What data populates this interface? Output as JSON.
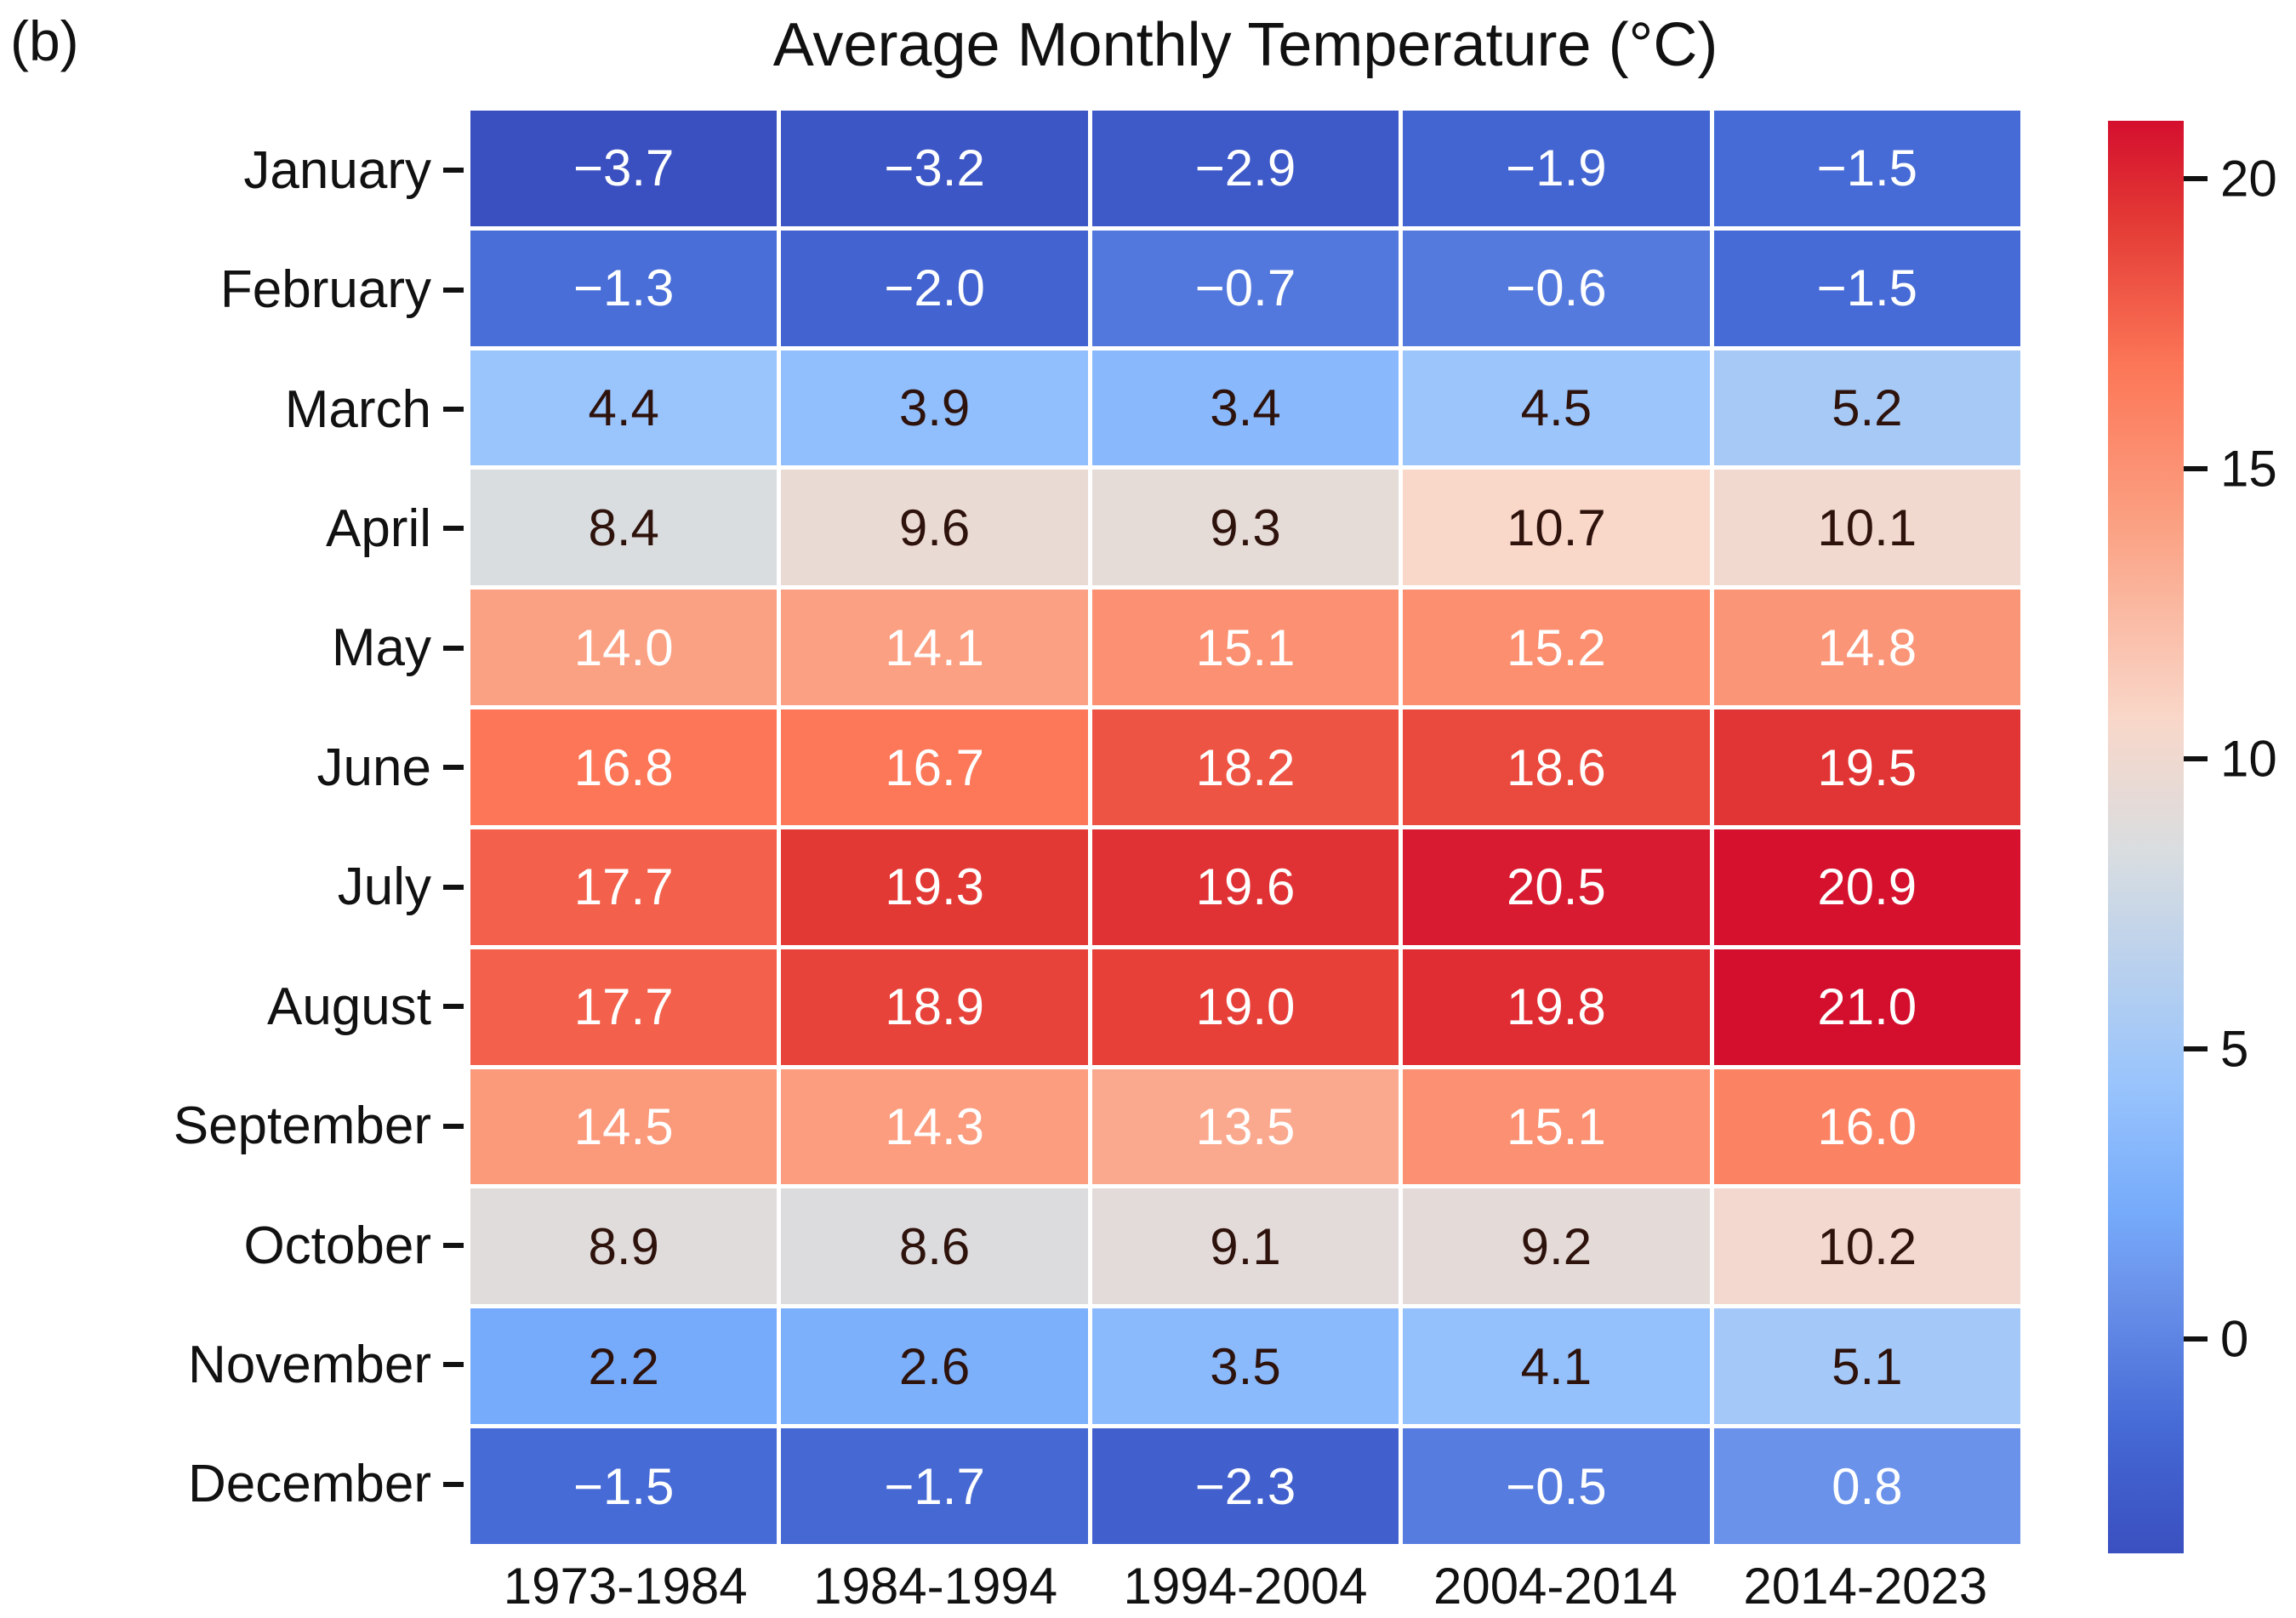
{
  "panel_label": "(b)",
  "chart_data": {
    "type": "heatmap",
    "title": "Average Monthly Temperature (°C)",
    "rows": [
      "January",
      "February",
      "March",
      "April",
      "May",
      "June",
      "July",
      "August",
      "September",
      "October",
      "November",
      "December"
    ],
    "columns": [
      "1973-1984",
      "1984-1994",
      "1994-2004",
      "2004-2014",
      "2014-2023"
    ],
    "values": [
      [
        -3.7,
        -3.2,
        -2.9,
        -1.9,
        -1.5
      ],
      [
        -1.3,
        -2.0,
        -0.7,
        -0.6,
        -1.5
      ],
      [
        4.4,
        3.9,
        3.4,
        4.5,
        5.2
      ],
      [
        8.4,
        9.6,
        9.3,
        10.7,
        10.1
      ],
      [
        14.0,
        14.1,
        15.1,
        15.2,
        14.8
      ],
      [
        16.8,
        16.7,
        18.2,
        18.6,
        19.5
      ],
      [
        17.7,
        19.3,
        19.6,
        20.5,
        20.9
      ],
      [
        17.7,
        18.9,
        19.0,
        19.8,
        21.0
      ],
      [
        14.5,
        14.3,
        13.5,
        15.1,
        16.0
      ],
      [
        8.9,
        8.6,
        9.1,
        9.2,
        10.2
      ],
      [
        2.2,
        2.6,
        3.5,
        4.1,
        5.1
      ],
      [
        -1.5,
        -1.7,
        -2.3,
        -0.5,
        0.8
      ]
    ],
    "vmin": -3.7,
    "vmax": 21.0,
    "value_decimals": 1,
    "colorbar": {
      "ticks": [
        20,
        15,
        10,
        5,
        0
      ],
      "position": "right"
    },
    "colormap_stops": [
      {
        "t": 0.0,
        "color": "#3B50C0"
      },
      {
        "t": 0.069,
        "color": "#4263D0"
      },
      {
        "t": 0.097,
        "color": "#496ED8"
      },
      {
        "t": 0.182,
        "color": "#6A92EA"
      },
      {
        "t": 0.239,
        "color": "#76ABFB"
      },
      {
        "t": 0.328,
        "color": "#99C4FC"
      },
      {
        "t": 0.49,
        "color": "#D9DDE0"
      },
      {
        "t": 0.583,
        "color": "#F9D7C9"
      },
      {
        "t": 0.717,
        "color": "#FBA183"
      },
      {
        "t": 0.83,
        "color": "#FC7657"
      },
      {
        "t": 0.931,
        "color": "#E33935"
      },
      {
        "t": 1.0,
        "color": "#D40F2E"
      }
    ],
    "text_rule": {
      "white_below_t": 0.21,
      "white_above_t": 0.645
    },
    "colors": {
      "annot_dark": "#2E120C",
      "annot_light": "#FFFFFF",
      "axis_label": "#111111"
    },
    "layout": {
      "grid_gap_color": "#FFFFFF",
      "legend_position": "right-colorbar"
    }
  }
}
